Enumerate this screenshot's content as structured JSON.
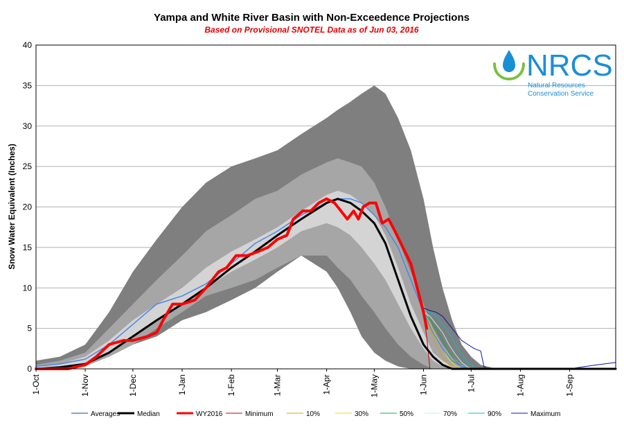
{
  "chart_data": {
    "type": "area",
    "title": "Yampa and White River Basin with Non-Exceedence Projections",
    "subtitle": "Based on Provisional SNOTEL Data as of Jun 03, 2016",
    "xlabel": "",
    "ylabel": "Snow Water Equivalent (Inches)",
    "ylim": [
      0,
      40
    ],
    "yticks": [
      0,
      5,
      10,
      15,
      20,
      25,
      30,
      35,
      40
    ],
    "grid": true,
    "x_unit": "days since 1-Oct",
    "xlim": [
      0,
      365
    ],
    "month_ticks": [
      {
        "label": "1-Oct",
        "day": 0
      },
      {
        "label": "1-Nov",
        "day": 31
      },
      {
        "label": "1-Dec",
        "day": 61
      },
      {
        "label": "1-Jan",
        "day": 92
      },
      {
        "label": "1-Feb",
        "day": 123
      },
      {
        "label": "1-Mar",
        "day": 152
      },
      {
        "label": "1-Apr",
        "day": 183
      },
      {
        "label": "1-May",
        "day": 213
      },
      {
        "label": "1-Jun",
        "day": 244
      },
      {
        "label": "1-Jul",
        "day": 274
      },
      {
        "label": "1-Aug",
        "day": 305
      },
      {
        "label": "1-Sep",
        "day": 336
      }
    ],
    "bands": [
      {
        "name": "min-max",
        "color": "#7f7f7f",
        "x": [
          0,
          15,
          31,
          46,
          61,
          76,
          92,
          107,
          123,
          138,
          152,
          167,
          183,
          190,
          198,
          205,
          213,
          220,
          228,
          236,
          244,
          250,
          256,
          262,
          268,
          274,
          280,
          290,
          300,
          336,
          365
        ],
        "upper": [
          1,
          1.5,
          3,
          7,
          12,
          16,
          20,
          23,
          25,
          26,
          27,
          29,
          31,
          32,
          33,
          34,
          35,
          34,
          31,
          27,
          21,
          15,
          10,
          6,
          3,
          1.5,
          0.5,
          0,
          0,
          0,
          0
        ],
        "lower": [
          0,
          0,
          0.5,
          1.5,
          3,
          4,
          6,
          7,
          8.5,
          10,
          12,
          14,
          12,
          10,
          7,
          4,
          2,
          1,
          0.3,
          0,
          0,
          0,
          0,
          0,
          0,
          0,
          0,
          0,
          0,
          0,
          0
        ]
      },
      {
        "name": "10-90",
        "color": "#a6a6a6",
        "x": [
          0,
          15,
          31,
          46,
          61,
          76,
          92,
          107,
          123,
          138,
          152,
          167,
          183,
          190,
          198,
          205,
          213,
          220,
          228,
          236,
          244,
          250,
          256,
          262,
          268,
          274,
          280,
          290,
          365
        ],
        "upper": [
          0.5,
          1,
          2,
          5,
          8,
          11,
          14,
          17,
          19,
          21,
          22,
          24,
          25.5,
          26,
          25.5,
          25,
          23,
          20,
          16,
          12,
          8,
          5,
          3,
          1.5,
          0.5,
          0,
          0,
          0,
          0
        ],
        "lower": [
          0,
          0,
          0.3,
          1.5,
          3,
          5,
          7,
          9,
          10,
          11,
          12.5,
          14,
          14,
          12.5,
          11,
          9,
          7,
          5,
          3,
          1.5,
          0.5,
          0,
          0,
          0,
          0,
          0,
          0,
          0,
          0
        ]
      },
      {
        "name": "30-70",
        "color": "#d4d4d4",
        "x": [
          0,
          15,
          31,
          46,
          61,
          76,
          92,
          107,
          123,
          138,
          152,
          167,
          183,
          190,
          198,
          205,
          213,
          220,
          228,
          236,
          244,
          250,
          256,
          262,
          268,
          274,
          365
        ],
        "upper": [
          0.3,
          0.6,
          1.5,
          3.5,
          6,
          8,
          10,
          12.5,
          14.5,
          16,
          17.5,
          19.5,
          21.5,
          22,
          21.5,
          20.5,
          19,
          16.5,
          12.5,
          8,
          4.5,
          2,
          1,
          0.3,
          0,
          0,
          0
        ],
        "lower": [
          0,
          0.1,
          0.5,
          2,
          4,
          6,
          8,
          10,
          12,
          13.5,
          15,
          17,
          18,
          17.5,
          16.5,
          15,
          13,
          11,
          8,
          5,
          2.5,
          1,
          0.3,
          0,
          0,
          0,
          0
        ]
      }
    ],
    "series": [
      {
        "name": "Averages",
        "color": "#4a86e8",
        "width": 1.5,
        "x": [
          0,
          15,
          31,
          46,
          61,
          76,
          92,
          107,
          123,
          138,
          152,
          167,
          183,
          190,
          198,
          205,
          213,
          220,
          228,
          236,
          244,
          250,
          256,
          262,
          268,
          274,
          280,
          290,
          365
        ],
        "y": [
          0.3,
          0.6,
          1.2,
          3,
          5.5,
          8,
          9,
          10.5,
          13,
          15.5,
          17,
          19,
          20.5,
          21,
          21,
          20.5,
          19,
          17.5,
          15,
          11,
          7,
          4.5,
          2.5,
          1,
          0.3,
          0,
          0,
          0,
          0
        ]
      },
      {
        "name": "Median",
        "color": "#000000",
        "width": 3,
        "x": [
          0,
          15,
          31,
          46,
          61,
          76,
          92,
          107,
          123,
          138,
          152,
          167,
          183,
          190,
          198,
          205,
          213,
          220,
          228,
          236,
          244,
          250,
          256,
          262,
          268,
          274,
          365
        ],
        "y": [
          0,
          0.2,
          0.6,
          2,
          4,
          6,
          8,
          10,
          12.5,
          14.5,
          16.5,
          18.5,
          20.5,
          21,
          20.5,
          19.5,
          18,
          15.5,
          11,
          6.5,
          3,
          1.5,
          0.5,
          0,
          0,
          0,
          0
        ]
      },
      {
        "name": "WY2016",
        "color": "#ff0000",
        "width": 4,
        "x": [
          0,
          20,
          31,
          38,
          46,
          55,
          61,
          70,
          76,
          80,
          86,
          92,
          100,
          107,
          115,
          120,
          126,
          133,
          140,
          146,
          152,
          158,
          162,
          168,
          173,
          178,
          183,
          188,
          192,
          196,
          200,
          203,
          206,
          210,
          214,
          218,
          222,
          226,
          231,
          236,
          240,
          244,
          246
        ],
        "y": [
          0,
          0,
          0.5,
          1.5,
          3,
          3.5,
          3.5,
          4,
          4.5,
          6,
          8,
          8,
          8.5,
          10,
          12,
          12.5,
          14,
          14,
          14.5,
          15,
          16,
          16.5,
          18.5,
          19.5,
          19.5,
          20.5,
          21,
          20.5,
          19.5,
          18.5,
          19.5,
          18.5,
          20,
          20.5,
          20.5,
          18,
          18.5,
          17,
          15,
          13,
          10,
          7,
          5
        ]
      },
      {
        "name": "Minimum",
        "color": "#c00000",
        "width": 1,
        "x": [
          244,
          246,
          248
        ],
        "y": [
          7,
          4,
          0
        ]
      },
      {
        "name": "10%",
        "color": "#e0a000",
        "width": 1,
        "x": [
          244,
          248,
          252,
          256,
          260,
          264
        ],
        "y": [
          7,
          5,
          3,
          1.5,
          0.5,
          0
        ]
      },
      {
        "name": "30%",
        "color": "#ffd700",
        "width": 1,
        "x": [
          244,
          248,
          252,
          256,
          260,
          264,
          268
        ],
        "y": [
          7,
          5.5,
          4,
          2.5,
          1.2,
          0.4,
          0
        ]
      },
      {
        "name": "50%",
        "color": "#00b050",
        "width": 1,
        "x": [
          244,
          248,
          252,
          256,
          260,
          264,
          268,
          272
        ],
        "y": [
          7,
          6,
          5,
          3.5,
          2,
          1,
          0.3,
          0
        ]
      },
      {
        "name": "70%",
        "color": "#b8f0e8",
        "width": 1,
        "x": [
          244,
          248,
          252,
          256,
          260,
          264,
          268,
          272,
          275
        ],
        "y": [
          7,
          6.5,
          5.5,
          4.5,
          3,
          1.8,
          0.8,
          0.2,
          0
        ]
      },
      {
        "name": "90%",
        "color": "#00c0d0",
        "width": 1,
        "x": [
          244,
          248,
          252,
          256,
          260,
          264,
          268,
          272,
          276,
          279
        ],
        "y": [
          7.2,
          7,
          6.5,
          5.5,
          4.5,
          3,
          1.8,
          0.8,
          0.2,
          0
        ]
      },
      {
        "name": "Maximum",
        "color": "#1010a0",
        "width": 1,
        "x": [
          244,
          248,
          252,
          256,
          260,
          264,
          268,
          272,
          276,
          280,
          282,
          284,
          300,
          336,
          350,
          365
        ],
        "y": [
          7.5,
          7.2,
          7,
          6.5,
          5.5,
          4.5,
          3.5,
          3,
          2.5,
          2.2,
          0.3,
          0,
          0,
          0,
          0.4,
          0.8
        ]
      }
    ],
    "legend": [
      "Averages",
      "Median",
      "WY2016",
      "Minimum",
      "10%",
      "30%",
      "50%",
      "70%",
      "90%",
      "Maximum"
    ]
  },
  "logo": {
    "name": "NRCS",
    "line1": "Natural Resources",
    "line2": "Conservation Service",
    "color": "#1a8fd6",
    "accent": "#7ac142"
  }
}
